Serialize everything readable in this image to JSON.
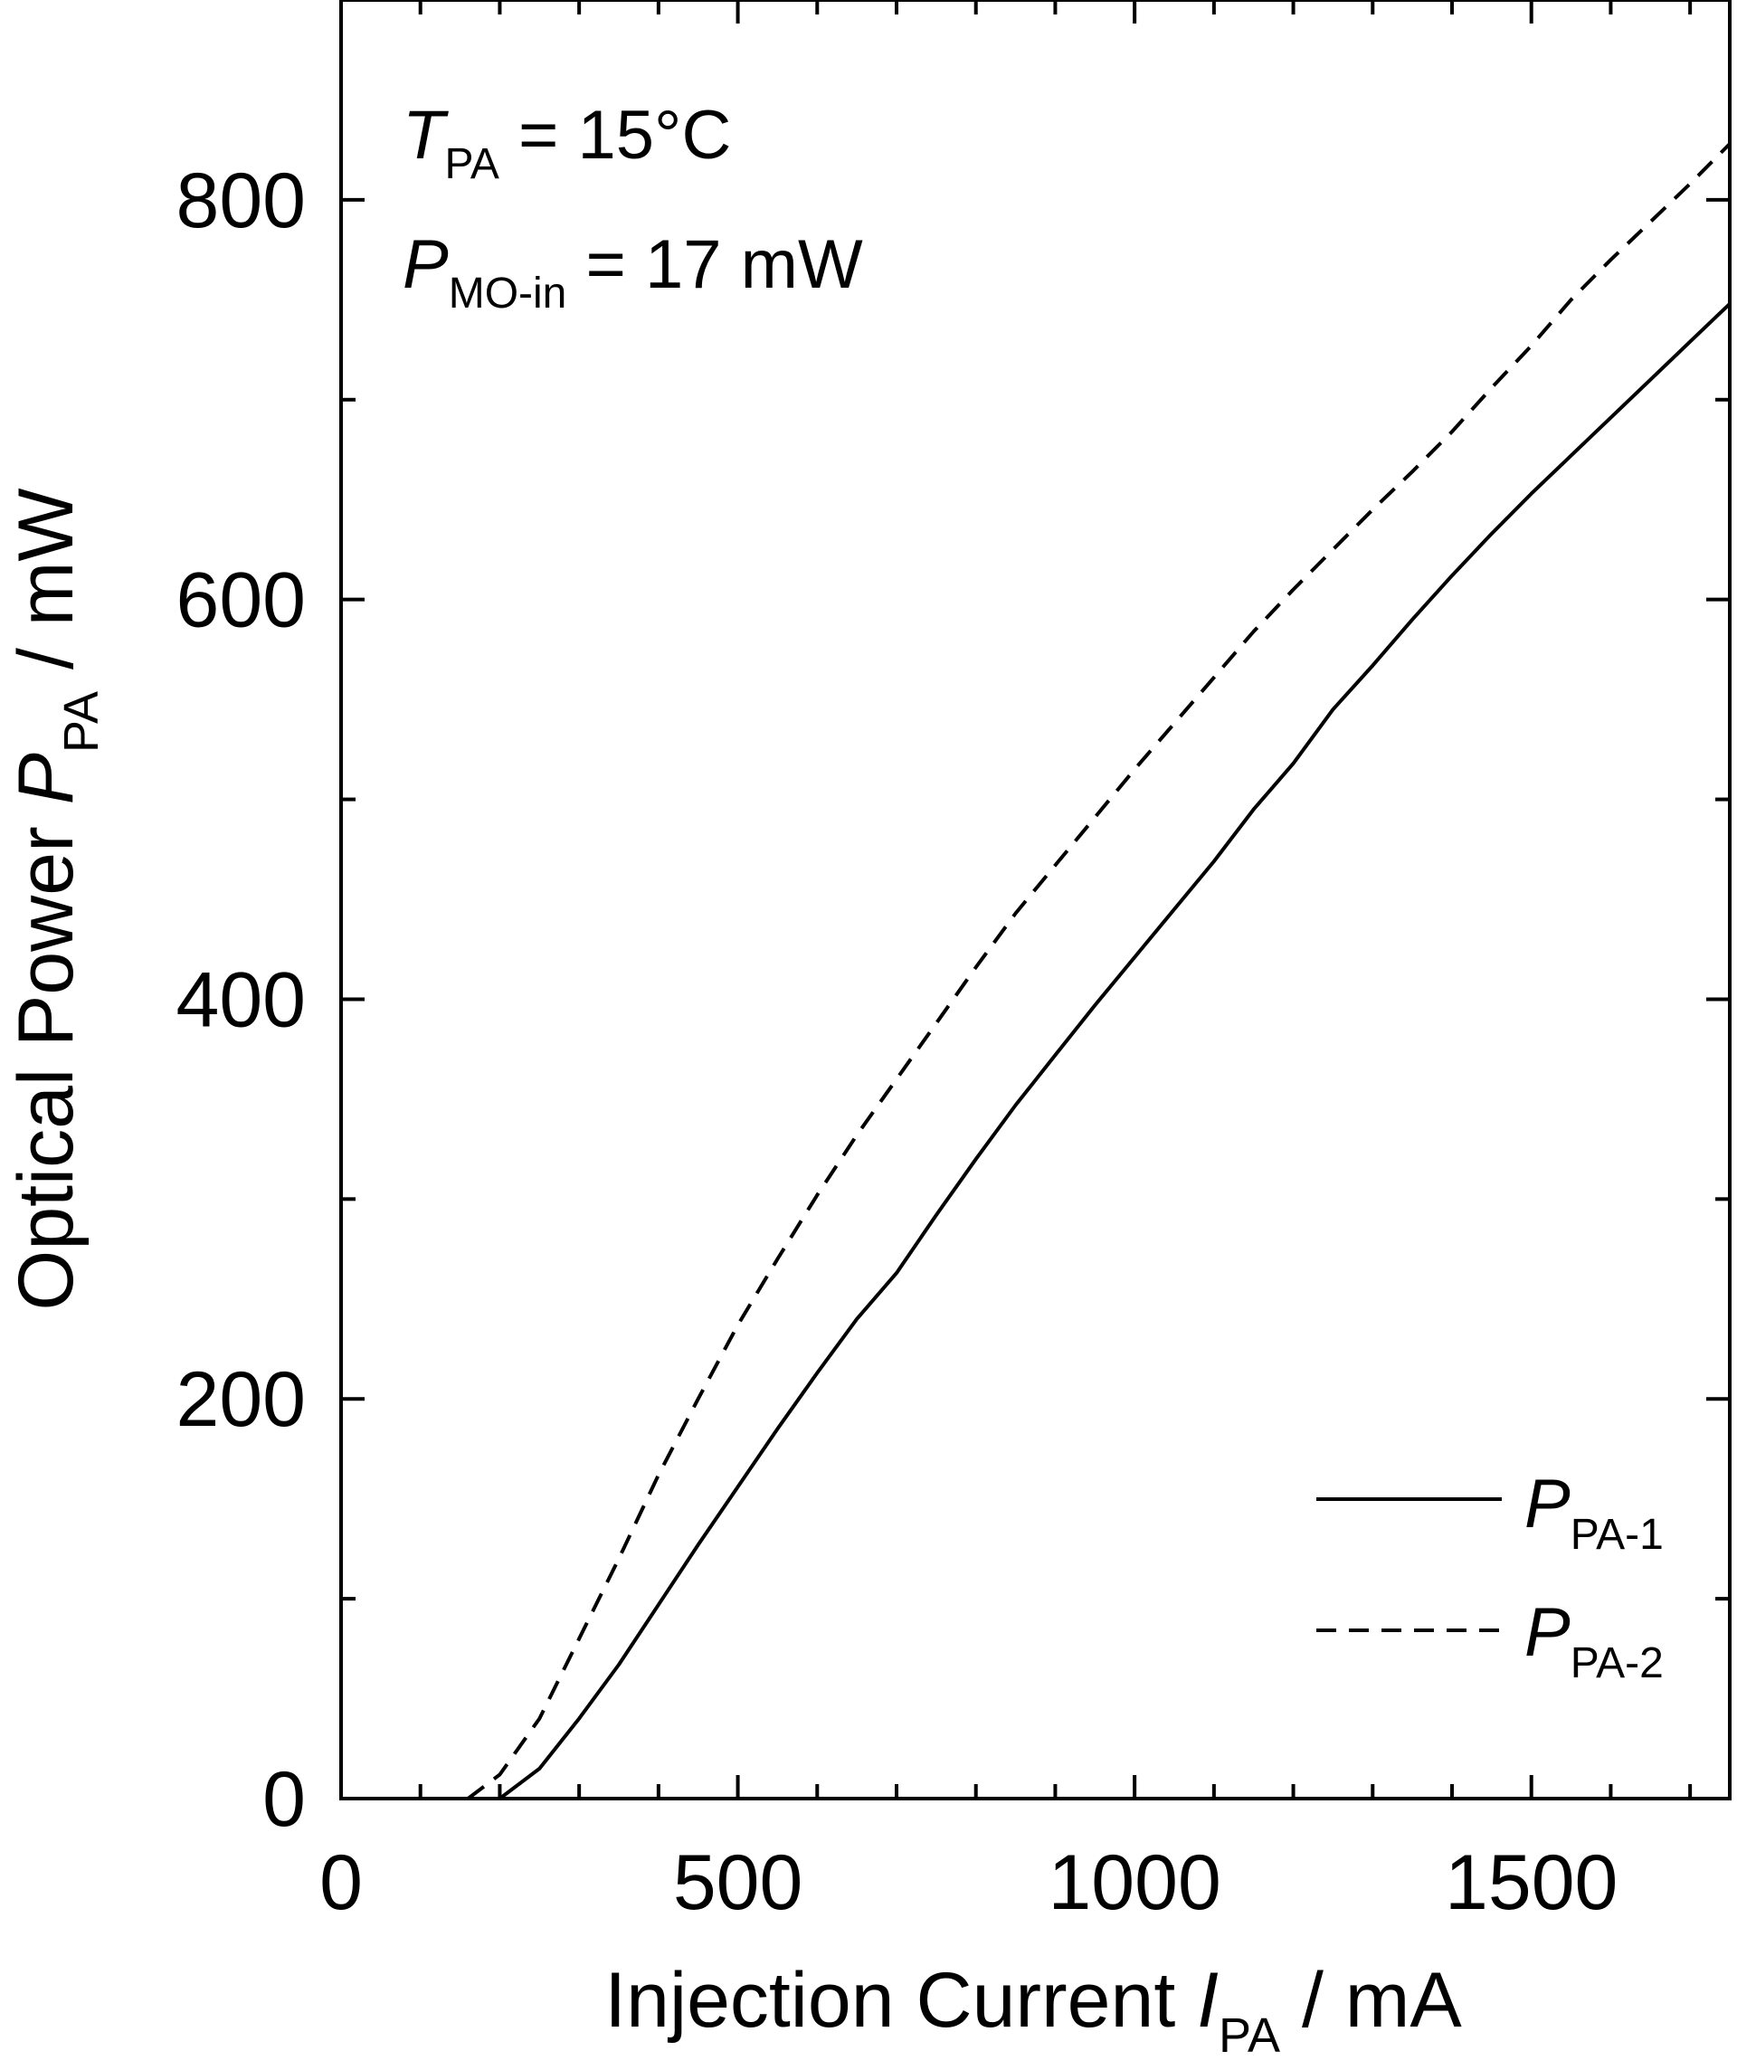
{
  "chart_data": {
    "type": "line",
    "xlabel": {
      "main": "Injection Current ",
      "var": "I",
      "sub": "PA",
      "unit": " / mA"
    },
    "ylabel": {
      "main": "Optical Power ",
      "var": "P",
      "sub": "PA",
      "unit": " / mW"
    },
    "xlim": [
      0,
      1750
    ],
    "ylim": [
      0,
      900
    ],
    "x_major_ticks": [
      0,
      500,
      1000,
      1500
    ],
    "x_minor_ticks": [
      100,
      200,
      300,
      400,
      600,
      700,
      800,
      900,
      1100,
      1200,
      1300,
      1400,
      1600,
      1700
    ],
    "y_major_ticks": [
      0,
      200,
      400,
      600,
      800
    ],
    "y_minor_ticks": [
      100,
      300,
      500,
      700
    ],
    "x_tick_labels": [
      "0",
      "500",
      "1000",
      "1500"
    ],
    "y_tick_labels": [
      "0",
      "200",
      "400",
      "600",
      "800"
    ],
    "grid": false,
    "annotations": [
      {
        "var": "T",
        "sub": "PA",
        "text": " = 15°C"
      },
      {
        "var": "P",
        "sub": "MO-in",
        "text": " = 17 mW"
      }
    ],
    "legend_position": "bottom-right",
    "series": [
      {
        "name": {
          "var": "P",
          "sub": "PA-1"
        },
        "style": "solid",
        "x": [
          200,
          250,
          300,
          350,
          400,
          450,
          500,
          550,
          600,
          650,
          700,
          750,
          800,
          850,
          900,
          950,
          1000,
          1050,
          1100,
          1150,
          1200,
          1250,
          1300,
          1350,
          1400,
          1450,
          1500,
          1550,
          1600,
          1650,
          1700,
          1750
        ],
        "y": [
          0,
          15,
          40,
          67,
          97,
          127,
          156,
          185,
          213,
          240,
          263,
          292,
          320,
          347,
          372,
          397,
          421,
          445,
          469,
          495,
          518,
          545,
          567,
          590,
          612,
          633,
          653,
          672,
          691,
          710,
          729,
          748
        ]
      },
      {
        "name": {
          "var": "P",
          "sub": "PA-2"
        },
        "style": "dashed",
        "x": [
          160,
          200,
          250,
          300,
          350,
          400,
          450,
          500,
          550,
          600,
          650,
          700,
          750,
          800,
          850,
          900,
          950,
          1000,
          1050,
          1100,
          1150,
          1200,
          1250,
          1300,
          1350,
          1400,
          1450,
          1500,
          1550,
          1600,
          1650,
          1700,
          1750
        ],
        "y": [
          0,
          12,
          40,
          80,
          120,
          162,
          200,
          237,
          270,
          302,
          332,
          360,
          388,
          416,
          443,
          467,
          491,
          515,
          538,
          561,
          584,
          605,
          625,
          645,
          664,
          684,
          706,
          727,
          750,
          770,
          789,
          808,
          828
        ]
      }
    ]
  }
}
